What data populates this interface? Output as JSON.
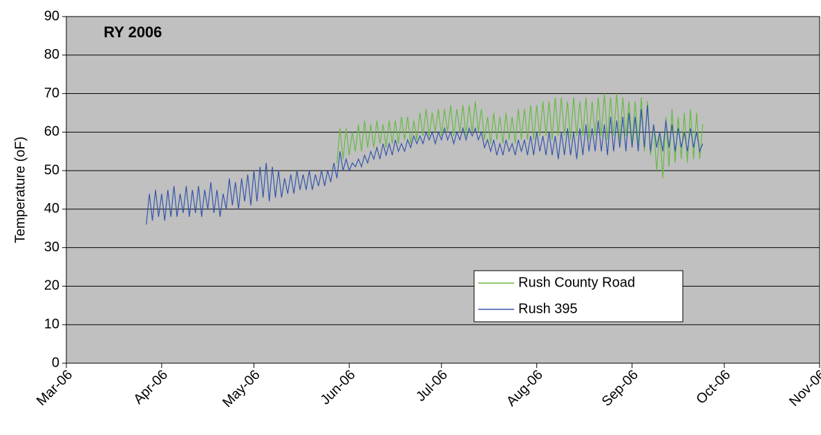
{
  "chart_data": {
    "type": "line",
    "title": "RY 2006",
    "y_label": "Temperature (oF)",
    "x": [
      26,
      27,
      28,
      29,
      30,
      31,
      32,
      33,
      34,
      35,
      36,
      37,
      38,
      39,
      40,
      41,
      42,
      43,
      44,
      45,
      46,
      47,
      48,
      49,
      50,
      51,
      52,
      53,
      54,
      55,
      56,
      57,
      58,
      59,
      60,
      61,
      62,
      63,
      64,
      65,
      66,
      67,
      68,
      69,
      70,
      71,
      72,
      73,
      74,
      75,
      76,
      77,
      78,
      79,
      80,
      81,
      82,
      83,
      84,
      85,
      86,
      87,
      88,
      89,
      90,
      91,
      92,
      93,
      94,
      95,
      96,
      97,
      98,
      99,
      100,
      101,
      102,
      103,
      104,
      105,
      106,
      107,
      108,
      109,
      110,
      111,
      112,
      113,
      114,
      115,
      116,
      117,
      118,
      119,
      120,
      121,
      122,
      123,
      124,
      125,
      126,
      127,
      128,
      129,
      130,
      131,
      132,
      133,
      134,
      135,
      136,
      137,
      138,
      139,
      140,
      141,
      142,
      143,
      144,
      145,
      146,
      147,
      148,
      149,
      150,
      151,
      152,
      153,
      154,
      155,
      156,
      157,
      158,
      159,
      160,
      161,
      162,
      163,
      164,
      165,
      166,
      167,
      168,
      169,
      170,
      171,
      172,
      173,
      174,
      175,
      176,
      177,
      178,
      179,
      180,
      181,
      182,
      183,
      184,
      185,
      186,
      187,
      188,
      189,
      190,
      191,
      192,
      193,
      194,
      195,
      196,
      197,
      198,
      199,
      200,
      201,
      202,
      203,
      204,
      205,
      206,
      207
    ],
    "series": [
      {
        "name": "Rush County Road",
        "color": "#66bb44",
        "values": [
          null,
          null,
          null,
          null,
          null,
          null,
          null,
          null,
          null,
          null,
          null,
          null,
          null,
          null,
          null,
          null,
          null,
          null,
          null,
          null,
          null,
          null,
          null,
          null,
          null,
          null,
          null,
          null,
          null,
          null,
          null,
          null,
          null,
          null,
          null,
          null,
          null,
          null,
          null,
          null,
          null,
          null,
          null,
          null,
          null,
          null,
          null,
          null,
          null,
          null,
          null,
          null,
          null,
          null,
          null,
          null,
          null,
          null,
          null,
          null,
          null,
          null,
          52,
          61,
          53,
          61,
          54,
          60,
          55,
          62,
          55,
          63,
          56,
          62,
          56,
          63,
          57,
          62,
          56,
          63,
          57,
          63,
          57,
          64,
          58,
          64,
          57,
          63,
          58,
          65,
          59,
          66,
          59,
          65,
          60,
          66,
          59,
          66,
          60,
          67,
          59,
          66,
          60,
          67,
          59,
          67,
          60,
          68,
          60,
          66,
          58,
          64,
          57,
          65,
          58,
          64,
          57,
          65,
          58,
          64,
          57,
          66,
          58,
          66,
          58,
          67,
          58,
          67,
          59,
          68,
          59,
          68,
          58,
          69,
          59,
          69,
          59,
          68,
          58,
          69,
          59,
          68,
          59,
          69,
          58,
          68,
          59,
          69,
          59,
          70,
          58,
          69,
          59,
          70,
          58,
          69,
          59,
          68,
          57,
          68,
          56,
          69,
          55,
          68,
          54,
          62,
          50,
          60,
          48,
          64,
          51,
          66,
          52,
          64,
          53,
          65,
          52,
          66,
          53,
          65,
          53,
          62
        ]
      },
      {
        "name": "Rush 395",
        "color": "#3355aa",
        "values": [
          36,
          44,
          37,
          45,
          38,
          44,
          37,
          45,
          38,
          46,
          38,
          44,
          39,
          46,
          38,
          45,
          39,
          46,
          38,
          45,
          40,
          47,
          39,
          45,
          38,
          44,
          40,
          48,
          41,
          47,
          40,
          48,
          42,
          49,
          41,
          50,
          42,
          51,
          43,
          52,
          42,
          51,
          43,
          50,
          43,
          48,
          44,
          49,
          44,
          50,
          45,
          49,
          45,
          50,
          45,
          49,
          46,
          50,
          46,
          50,
          47,
          52,
          48,
          55,
          50,
          53,
          50,
          52,
          51,
          53,
          51,
          54,
          52,
          55,
          53,
          56,
          53,
          57,
          54,
          57,
          54,
          58,
          55,
          57,
          55,
          58,
          56,
          59,
          57,
          59,
          57,
          60,
          58,
          60,
          57,
          60,
          58,
          61,
          58,
          60,
          57,
          60,
          58,
          61,
          58,
          61,
          59,
          61,
          58,
          60,
          56,
          58,
          55,
          58,
          54,
          57,
          54,
          58,
          55,
          57,
          54,
          58,
          55,
          58,
          54,
          59,
          54,
          60,
          55,
          59,
          54,
          60,
          54,
          59,
          53,
          60,
          54,
          61,
          54,
          60,
          53,
          61,
          54,
          62,
          55,
          61,
          55,
          63,
          55,
          62,
          54,
          64,
          55,
          63,
          56,
          64,
          55,
          65,
          56,
          64,
          55,
          66,
          56,
          67,
          55,
          62,
          56,
          60,
          55,
          63,
          56,
          62,
          55,
          61,
          56,
          60,
          55,
          61,
          56,
          60,
          55,
          57
        ]
      }
    ],
    "xlim": [
      0,
      245
    ],
    "xticks": [
      {
        "value": 0,
        "label": "Mar-06"
      },
      {
        "value": 31,
        "label": "Apr-06"
      },
      {
        "value": 61,
        "label": "May-06"
      },
      {
        "value": 92,
        "label": "Jun-06"
      },
      {
        "value": 122,
        "label": "Jul-06"
      },
      {
        "value": 153,
        "label": "Aug-06"
      },
      {
        "value": 184,
        "label": "Sep-06"
      },
      {
        "value": 214,
        "label": "Oct-06"
      },
      {
        "value": 245,
        "label": "Nov-06"
      }
    ],
    "ylim": [
      0,
      90
    ],
    "yticks": [
      0,
      10,
      20,
      30,
      40,
      50,
      60,
      70,
      80,
      90
    ],
    "grid": true
  }
}
